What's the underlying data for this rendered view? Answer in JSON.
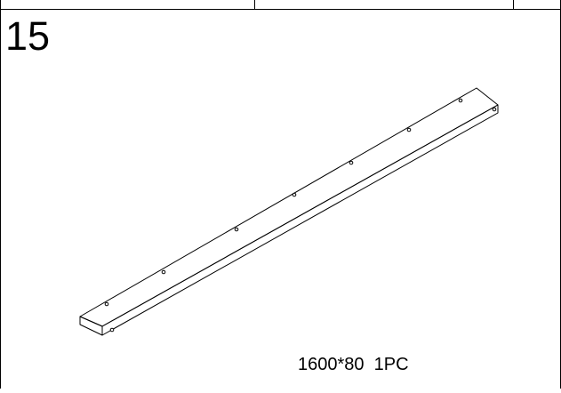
{
  "part": {
    "number": "15",
    "spec": "1600*80  1PC"
  },
  "colors": {
    "line": "#000000",
    "background": "#ffffff"
  }
}
